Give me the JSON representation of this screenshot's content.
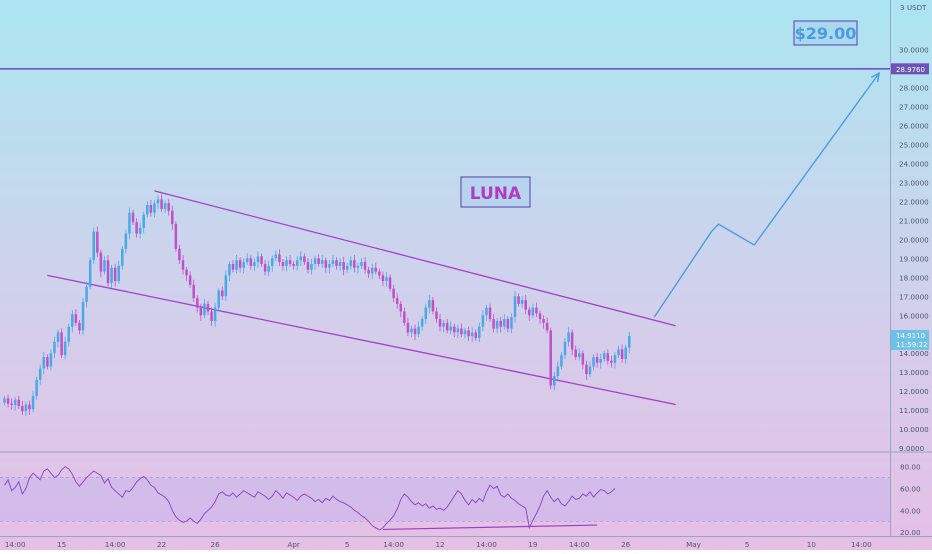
{
  "chart_data": [
    {
      "type": "candlestick",
      "symbol": "LUNA",
      "currency": "USDT",
      "price_axis_title": "USDT",
      "axis_top_fragment": "3",
      "ylim": [
        8.8,
        32.6
      ],
      "y_ticks": [
        "9.0000",
        "10.0000",
        "11.0000",
        "12.0000",
        "13.0000",
        "14.0000",
        "15.0000",
        "16.0000",
        "17.0000",
        "18.0000",
        "19.0000",
        "20.0000",
        "21.0000",
        "22.0000",
        "23.0000",
        "24.0000",
        "25.0000",
        "26.0000",
        "27.0000",
        "28.0000",
        "29.0000",
        "30.0000"
      ],
      "last_price_label": "14.9110",
      "last_price_value": 14.911,
      "countdown_label": "11:59:22",
      "horizontal_level": {
        "value": 28.976,
        "label": "28.9760"
      },
      "target_label": "$29.00",
      "pattern": "descending channel",
      "channel_upper": {
        "start_bar": 42,
        "start": 22.55,
        "end_bar": 188,
        "end": 15.45
      },
      "channel_lower": {
        "start_bar": 12,
        "start": 18.1,
        "end_bar": 188,
        "end": 11.3
      },
      "projection": [
        {
          "bar": 182,
          "price": 15.9
        },
        {
          "bar": 198,
          "price": 20.4
        },
        {
          "bar": 200,
          "price": 20.8
        },
        {
          "bar": 210,
          "price": 19.7
        },
        {
          "bar": 245,
          "price": 28.75
        }
      ],
      "candles": [
        [
          11.4,
          11.62
        ],
        [
          11.62,
          11.35
        ],
        [
          11.35,
          11.28
        ],
        [
          11.28,
          11.55
        ],
        [
          11.55,
          11.22
        ],
        [
          11.22,
          10.95
        ],
        [
          10.95,
          11.3
        ],
        [
          11.3,
          11.05
        ],
        [
          11.05,
          11.75
        ],
        [
          11.75,
          12.6
        ],
        [
          12.6,
          13.2
        ],
        [
          13.2,
          13.8
        ],
        [
          13.8,
          13.3
        ],
        [
          13.3,
          14.0
        ],
        [
          14.0,
          14.6
        ],
        [
          14.6,
          15.1
        ],
        [
          15.1,
          13.9
        ],
        [
          13.9,
          14.6
        ],
        [
          14.6,
          15.4
        ],
        [
          15.4,
          16.05
        ],
        [
          16.05,
          15.6
        ],
        [
          15.6,
          15.2
        ],
        [
          15.2,
          16.7
        ],
        [
          16.7,
          17.5
        ],
        [
          17.5,
          18.9
        ],
        [
          18.9,
          20.4
        ],
        [
          20.4,
          19.3
        ],
        [
          19.3,
          18.3
        ],
        [
          18.3,
          18.9
        ],
        [
          18.9,
          17.7
        ],
        [
          17.7,
          18.5
        ],
        [
          18.5,
          17.8
        ],
        [
          17.8,
          18.6
        ],
        [
          18.6,
          19.5
        ],
        [
          19.5,
          20.3
        ],
        [
          20.3,
          21.4
        ],
        [
          21.4,
          20.9
        ],
        [
          20.9,
          20.3
        ],
        [
          20.3,
          20.6
        ],
        [
          20.6,
          21.3
        ],
        [
          21.3,
          21.8
        ],
        [
          21.8,
          21.4
        ],
        [
          21.4,
          21.9
        ],
        [
          21.9,
          22.1
        ],
        [
          22.1,
          21.6
        ],
        [
          21.6,
          21.9
        ],
        [
          21.9,
          21.5
        ],
        [
          21.5,
          20.8
        ],
        [
          20.8,
          19.5
        ],
        [
          19.5,
          18.9
        ],
        [
          18.9,
          18.4
        ],
        [
          18.4,
          18.1
        ],
        [
          18.1,
          17.6
        ],
        [
          17.6,
          16.9
        ],
        [
          16.9,
          16.4
        ],
        [
          16.4,
          16.0
        ],
        [
          16.0,
          16.6
        ],
        [
          16.6,
          16.2
        ],
        [
          16.2,
          15.7
        ],
        [
          15.7,
          16.4
        ],
        [
          16.4,
          17.3
        ],
        [
          17.3,
          17.0
        ],
        [
          17.0,
          18.1
        ],
        [
          18.1,
          18.7
        ],
        [
          18.7,
          18.4
        ],
        [
          18.4,
          18.9
        ],
        [
          18.9,
          18.5
        ],
        [
          18.5,
          18.8
        ],
        [
          18.8,
          19.0
        ],
        [
          19.0,
          18.6
        ],
        [
          18.6,
          18.8
        ],
        [
          18.8,
          19.1
        ],
        [
          19.1,
          18.7
        ],
        [
          18.7,
          18.3
        ],
        [
          18.3,
          18.6
        ],
        [
          18.6,
          19.0
        ],
        [
          19.0,
          19.2
        ],
        [
          19.2,
          18.8
        ],
        [
          18.8,
          18.6
        ],
        [
          18.6,
          18.9
        ],
        [
          18.9,
          18.7
        ],
        [
          18.7,
          18.6
        ],
        [
          18.6,
          18.9
        ],
        [
          18.9,
          19.1
        ],
        [
          19.1,
          18.8
        ],
        [
          18.8,
          18.4
        ],
        [
          18.4,
          18.7
        ],
        [
          18.7,
          19.0
        ],
        [
          19.0,
          18.7
        ],
        [
          18.7,
          18.9
        ],
        [
          18.9,
          18.5
        ],
        [
          18.5,
          18.7
        ],
        [
          18.7,
          18.9
        ],
        [
          18.9,
          18.6
        ],
        [
          18.6,
          18.8
        ],
        [
          18.8,
          18.4
        ],
        [
          18.4,
          18.6
        ],
        [
          18.6,
          18.9
        ],
        [
          18.9,
          18.5
        ],
        [
          18.5,
          18.6
        ],
        [
          18.6,
          18.8
        ],
        [
          18.8,
          18.4
        ],
        [
          18.4,
          18.2
        ],
        [
          18.2,
          18.5
        ],
        [
          18.5,
          18.3
        ],
        [
          18.3,
          18.1
        ],
        [
          18.1,
          17.8
        ],
        [
          17.8,
          18.0
        ],
        [
          18.0,
          17.4
        ],
        [
          17.4,
          16.9
        ],
        [
          16.9,
          16.6
        ],
        [
          16.6,
          16.2
        ],
        [
          16.2,
          15.6
        ],
        [
          15.6,
          15.1
        ],
        [
          15.1,
          15.3
        ],
        [
          15.3,
          15.0
        ],
        [
          15.0,
          15.4
        ],
        [
          15.4,
          15.8
        ],
        [
          15.8,
          16.4
        ],
        [
          16.4,
          16.8
        ],
        [
          16.8,
          16.2
        ],
        [
          16.2,
          15.8
        ],
        [
          15.8,
          15.4
        ],
        [
          15.4,
          15.6
        ],
        [
          15.6,
          15.2
        ],
        [
          15.2,
          15.4
        ],
        [
          15.4,
          15.1
        ],
        [
          15.1,
          15.3
        ],
        [
          15.3,
          15.0
        ],
        [
          15.0,
          15.2
        ],
        [
          15.2,
          14.9
        ],
        [
          14.9,
          15.1
        ],
        [
          15.1,
          14.8
        ],
        [
          14.8,
          15.4
        ],
        [
          15.4,
          16.0
        ],
        [
          16.0,
          16.4
        ],
        [
          16.4,
          15.8
        ],
        [
          15.8,
          15.3
        ],
        [
          15.3,
          15.7
        ],
        [
          15.7,
          15.4
        ],
        [
          15.4,
          15.8
        ],
        [
          15.8,
          15.3
        ],
        [
          15.3,
          15.9
        ],
        [
          15.9,
          17.0
        ],
        [
          17.0,
          16.6
        ],
        [
          16.6,
          16.8
        ],
        [
          16.8,
          16.3
        ],
        [
          16.3,
          16.0
        ],
        [
          16.0,
          16.4
        ],
        [
          16.4,
          16.1
        ],
        [
          16.1,
          15.8
        ],
        [
          15.8,
          15.6
        ],
        [
          15.6,
          15.2
        ],
        [
          15.2,
          12.3
        ],
        [
          12.3,
          12.8
        ],
        [
          12.8,
          13.3
        ],
        [
          13.3,
          13.9
        ],
        [
          13.9,
          14.6
        ],
        [
          14.6,
          15.1
        ],
        [
          15.1,
          14.2
        ],
        [
          14.2,
          13.8
        ],
        [
          13.8,
          14.0
        ],
        [
          14.0,
          13.4
        ],
        [
          13.4,
          12.9
        ],
        [
          12.9,
          13.3
        ],
        [
          13.3,
          13.8
        ],
        [
          13.8,
          13.5
        ],
        [
          13.5,
          13.7
        ],
        [
          13.7,
          14.0
        ],
        [
          14.0,
          13.6
        ],
        [
          13.6,
          13.5
        ],
        [
          13.5,
          13.9
        ],
        [
          13.9,
          14.2
        ],
        [
          14.2,
          13.7
        ],
        [
          13.7,
          14.3
        ],
        [
          14.3,
          14.91
        ]
      ],
      "x_ticks": [
        {
          "bar": 3,
          "label": "14:00"
        },
        {
          "bar": 16,
          "label": "15"
        },
        {
          "bar": 31,
          "label": "14:00"
        },
        {
          "bar": 44,
          "label": "22"
        },
        {
          "bar": 59,
          "label": "26"
        },
        {
          "bar": 81,
          "label": "Apr"
        },
        {
          "bar": 96,
          "label": "5"
        },
        {
          "bar": 109,
          "label": "14:00"
        },
        {
          "bar": 122,
          "label": "12"
        },
        {
          "bar": 135,
          "label": "14:00"
        },
        {
          "bar": 148,
          "label": "19"
        },
        {
          "bar": 161,
          "label": "14:00"
        },
        {
          "bar": 174,
          "label": "26"
        },
        {
          "bar": 193,
          "label": "May"
        },
        {
          "bar": 208,
          "label": "5"
        },
        {
          "bar": 226,
          "label": "10"
        },
        {
          "bar": 240,
          "label": "14:00"
        }
      ]
    },
    {
      "type": "line",
      "indicator": "oscillator",
      "ylim": [
        16.5,
        92.5
      ],
      "y_ticks": [
        "20.00",
        "40.00",
        "60.00",
        "80.00"
      ],
      "band": [
        30,
        70
      ],
      "values": [
        63,
        68,
        58,
        61,
        66,
        55,
        60,
        70,
        74,
        71,
        68,
        76,
        78,
        74,
        70,
        72,
        77,
        80,
        78,
        73,
        66,
        62,
        66,
        70,
        73,
        76,
        74,
        72,
        65,
        69,
        61,
        58,
        55,
        52,
        58,
        57,
        61,
        66,
        69,
        71,
        68,
        63,
        61,
        56,
        54,
        52,
        48,
        40,
        34,
        31,
        29,
        30,
        33,
        30,
        28,
        32,
        37,
        40,
        43,
        48,
        55,
        57,
        54,
        53,
        56,
        52,
        55,
        58,
        56,
        54,
        52,
        57,
        55,
        53,
        50,
        53,
        58,
        55,
        51,
        56,
        54,
        52,
        49,
        53,
        55,
        53,
        51,
        48,
        50,
        47,
        51,
        49,
        53,
        50,
        48,
        47,
        45,
        43,
        40,
        38,
        35,
        33,
        30,
        26,
        24,
        22,
        24,
        28,
        31,
        35,
        41,
        50,
        55,
        52,
        48,
        45,
        47,
        44,
        46,
        42,
        44,
        41,
        42,
        40,
        43,
        48,
        53,
        58,
        55,
        49,
        45,
        50,
        47,
        51,
        48,
        57,
        63,
        60,
        62,
        54,
        52,
        55,
        51,
        49,
        46,
        44,
        42,
        24,
        31,
        37,
        44,
        53,
        58,
        52,
        48,
        51,
        46,
        44,
        48,
        53,
        50,
        51,
        55,
        53,
        57,
        52,
        56,
        59,
        58,
        55,
        57,
        60
      ],
      "divergence_line": {
        "start_bar": 106,
        "start": 22.5,
        "end_bar": 166,
        "end": 26.5
      }
    }
  ]
}
